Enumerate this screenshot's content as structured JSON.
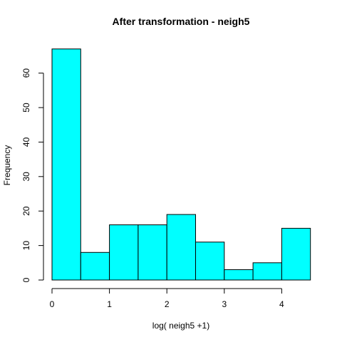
{
  "chart_data": {
    "type": "bar",
    "title": "After transformation -  neigh5",
    "xlabel": "log( neigh5 +1)",
    "ylabel": "Frequency",
    "bins": [
      {
        "start": 0.0,
        "end": 0.5,
        "count": 67
      },
      {
        "start": 0.5,
        "end": 1.0,
        "count": 8
      },
      {
        "start": 1.0,
        "end": 1.5,
        "count": 16
      },
      {
        "start": 1.5,
        "end": 2.0,
        "count": 16
      },
      {
        "start": 2.0,
        "end": 2.5,
        "count": 19
      },
      {
        "start": 2.5,
        "end": 3.0,
        "count": 11
      },
      {
        "start": 3.0,
        "end": 3.5,
        "count": 3
      },
      {
        "start": 3.5,
        "end": 4.0,
        "count": 5
      },
      {
        "start": 4.0,
        "end": 4.5,
        "count": 15
      }
    ],
    "xlim": [
      0,
      4.5
    ],
    "ylim": [
      0,
      67
    ],
    "x_ticks": [
      "0",
      "1",
      "2",
      "3",
      "4"
    ],
    "y_ticks": [
      "0",
      "10",
      "20",
      "30",
      "40",
      "50",
      "60"
    ],
    "bar_color": "#00FFFF",
    "grid": false,
    "legend": "none"
  }
}
